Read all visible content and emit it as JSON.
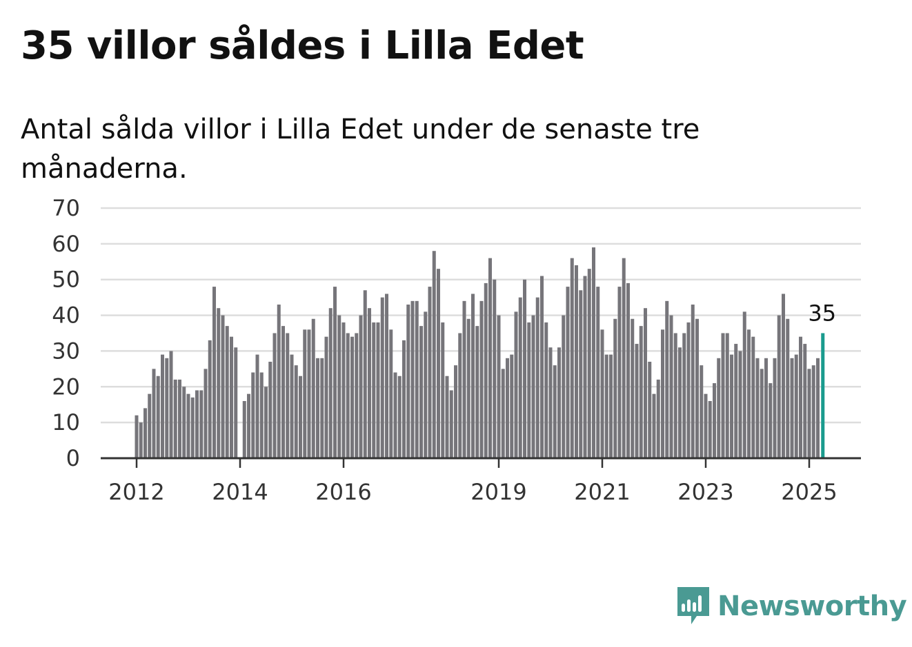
{
  "header": {
    "title": "35 villor såldes i Lilla Edet",
    "subtitle": "Antal sålda villor i Lilla Edet under de senaste tre månaderna."
  },
  "brand": {
    "name": "Newsworthy",
    "color": "#4a9a93",
    "icon": "newsworthy-logo-icon"
  },
  "colors": {
    "bar": "#76757a",
    "highlight": "#1a9b8e",
    "grid": "#dddddd",
    "axis": "#333333"
  },
  "chart_data": {
    "type": "bar",
    "x_start": "2012-01",
    "x_end": "2025-04",
    "frequency": "monthly",
    "ylim": [
      0,
      70
    ],
    "yticks": [
      0,
      10,
      20,
      30,
      40,
      50,
      60,
      70
    ],
    "xticks": [
      "2012",
      "2014",
      "2016",
      "2019",
      "2021",
      "2023",
      "2025"
    ],
    "grid": true,
    "highlight_last": true,
    "highlight_label": "35",
    "values": [
      12,
      10,
      14,
      18,
      25,
      23,
      29,
      28,
      30,
      22,
      22,
      20,
      18,
      17,
      19,
      19,
      25,
      33,
      48,
      42,
      40,
      37,
      34,
      31,
      0,
      16,
      18,
      24,
      29,
      24,
      20,
      27,
      35,
      43,
      37,
      35,
      29,
      26,
      23,
      36,
      36,
      39,
      28,
      28,
      34,
      42,
      48,
      40,
      38,
      35,
      34,
      35,
      40,
      47,
      42,
      38,
      38,
      45,
      46,
      36,
      24,
      23,
      33,
      43,
      44,
      44,
      37,
      41,
      48,
      58,
      53,
      38,
      23,
      19,
      26,
      35,
      44,
      39,
      46,
      37,
      44,
      49,
      56,
      50,
      40,
      25,
      28,
      29,
      41,
      45,
      50,
      38,
      40,
      45,
      51,
      38,
      31,
      26,
      31,
      40,
      48,
      56,
      54,
      47,
      51,
      53,
      59,
      48,
      36,
      29,
      29,
      39,
      48,
      56,
      49,
      39,
      32,
      37,
      42,
      27,
      18,
      22,
      36,
      44,
      40,
      35,
      31,
      35,
      38,
      43,
      39,
      26,
      18,
      16,
      21,
      28,
      35,
      35,
      29,
      32,
      30,
      41,
      36,
      34,
      28,
      25,
      28,
      21,
      28,
      40,
      46,
      39,
      28,
      29,
      34,
      32,
      25,
      26,
      28,
      35
    ]
  }
}
